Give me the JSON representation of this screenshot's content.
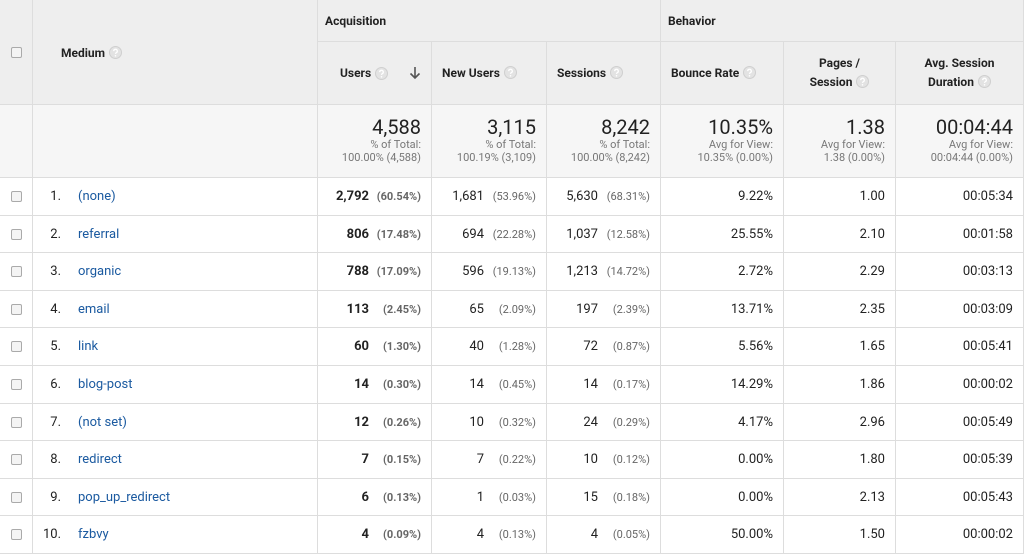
{
  "header": {
    "medium": "Medium",
    "groups": [
      "Acquisition",
      "Behavior"
    ],
    "columns": [
      "Users",
      "New Users",
      "Sessions",
      "Bounce Rate",
      "Pages / Session",
      "Avg. Session Duration"
    ]
  },
  "totals": [
    {
      "value": "4,588",
      "note": "% of Total:",
      "sub": "100.00% (4,588)"
    },
    {
      "value": "3,115",
      "note": "% of Total:",
      "sub": "100.19% (3,109)"
    },
    {
      "value": "8,242",
      "note": "% of Total:",
      "sub": "100.00% (8,242)"
    },
    {
      "value": "10.35%",
      "note": "Avg for View:",
      "sub": "10.35% (0.00%)"
    },
    {
      "value": "1.38",
      "note": "Avg for View:",
      "sub": "1.38 (0.00%)"
    },
    {
      "value": "00:04:44",
      "note": "Avg for View:",
      "sub": "00:04:44 (0.00%)"
    }
  ],
  "rows": [
    {
      "index": "1.",
      "medium": "(none)",
      "users": "2,792",
      "users_pct": "(60.54%)",
      "new_users": "1,681",
      "new_users_pct": "(53.96%)",
      "sessions": "5,630",
      "sessions_pct": "(68.31%)",
      "bounce_rate": "9.22%",
      "pages_per_session": "1.00",
      "duration": "00:05:34"
    },
    {
      "index": "2.",
      "medium": "referral",
      "users": "806",
      "users_pct": "(17.48%)",
      "new_users": "694",
      "new_users_pct": "(22.28%)",
      "sessions": "1,037",
      "sessions_pct": "(12.58%)",
      "bounce_rate": "25.55%",
      "pages_per_session": "2.10",
      "duration": "00:01:58"
    },
    {
      "index": "3.",
      "medium": "organic",
      "users": "788",
      "users_pct": "(17.09%)",
      "new_users": "596",
      "new_users_pct": "(19.13%)",
      "sessions": "1,213",
      "sessions_pct": "(14.72%)",
      "bounce_rate": "2.72%",
      "pages_per_session": "2.29",
      "duration": "00:03:13"
    },
    {
      "index": "4.",
      "medium": "email",
      "users": "113",
      "users_pct": "(2.45%)",
      "new_users": "65",
      "new_users_pct": "(2.09%)",
      "sessions": "197",
      "sessions_pct": "(2.39%)",
      "bounce_rate": "13.71%",
      "pages_per_session": "2.35",
      "duration": "00:03:09"
    },
    {
      "index": "5.",
      "medium": "link",
      "users": "60",
      "users_pct": "(1.30%)",
      "new_users": "40",
      "new_users_pct": "(1.28%)",
      "sessions": "72",
      "sessions_pct": "(0.87%)",
      "bounce_rate": "5.56%",
      "pages_per_session": "1.65",
      "duration": "00:05:41"
    },
    {
      "index": "6.",
      "medium": "blog-post",
      "users": "14",
      "users_pct": "(0.30%)",
      "new_users": "14",
      "new_users_pct": "(0.45%)",
      "sessions": "14",
      "sessions_pct": "(0.17%)",
      "bounce_rate": "14.29%",
      "pages_per_session": "1.86",
      "duration": "00:00:02"
    },
    {
      "index": "7.",
      "medium": "(not set)",
      "users": "12",
      "users_pct": "(0.26%)",
      "new_users": "10",
      "new_users_pct": "(0.32%)",
      "sessions": "24",
      "sessions_pct": "(0.29%)",
      "bounce_rate": "4.17%",
      "pages_per_session": "2.96",
      "duration": "00:05:49"
    },
    {
      "index": "8.",
      "medium": "redirect",
      "users": "7",
      "users_pct": "(0.15%)",
      "new_users": "7",
      "new_users_pct": "(0.22%)",
      "sessions": "10",
      "sessions_pct": "(0.12%)",
      "bounce_rate": "0.00%",
      "pages_per_session": "1.80",
      "duration": "00:05:39"
    },
    {
      "index": "9.",
      "medium": "pop_up_redirect",
      "users": "6",
      "users_pct": "(0.13%)",
      "new_users": "1",
      "new_users_pct": "(0.03%)",
      "sessions": "15",
      "sessions_pct": "(0.18%)",
      "bounce_rate": "0.00%",
      "pages_per_session": "2.13",
      "duration": "00:05:43"
    },
    {
      "index": "10.",
      "medium": "fzbvy",
      "users": "4",
      "users_pct": "(0.09%)",
      "new_users": "4",
      "new_users_pct": "(0.13%)",
      "sessions": "4",
      "sessions_pct": "(0.05%)",
      "bounce_rate": "50.00%",
      "pages_per_session": "1.50",
      "duration": "00:00:02"
    }
  ]
}
